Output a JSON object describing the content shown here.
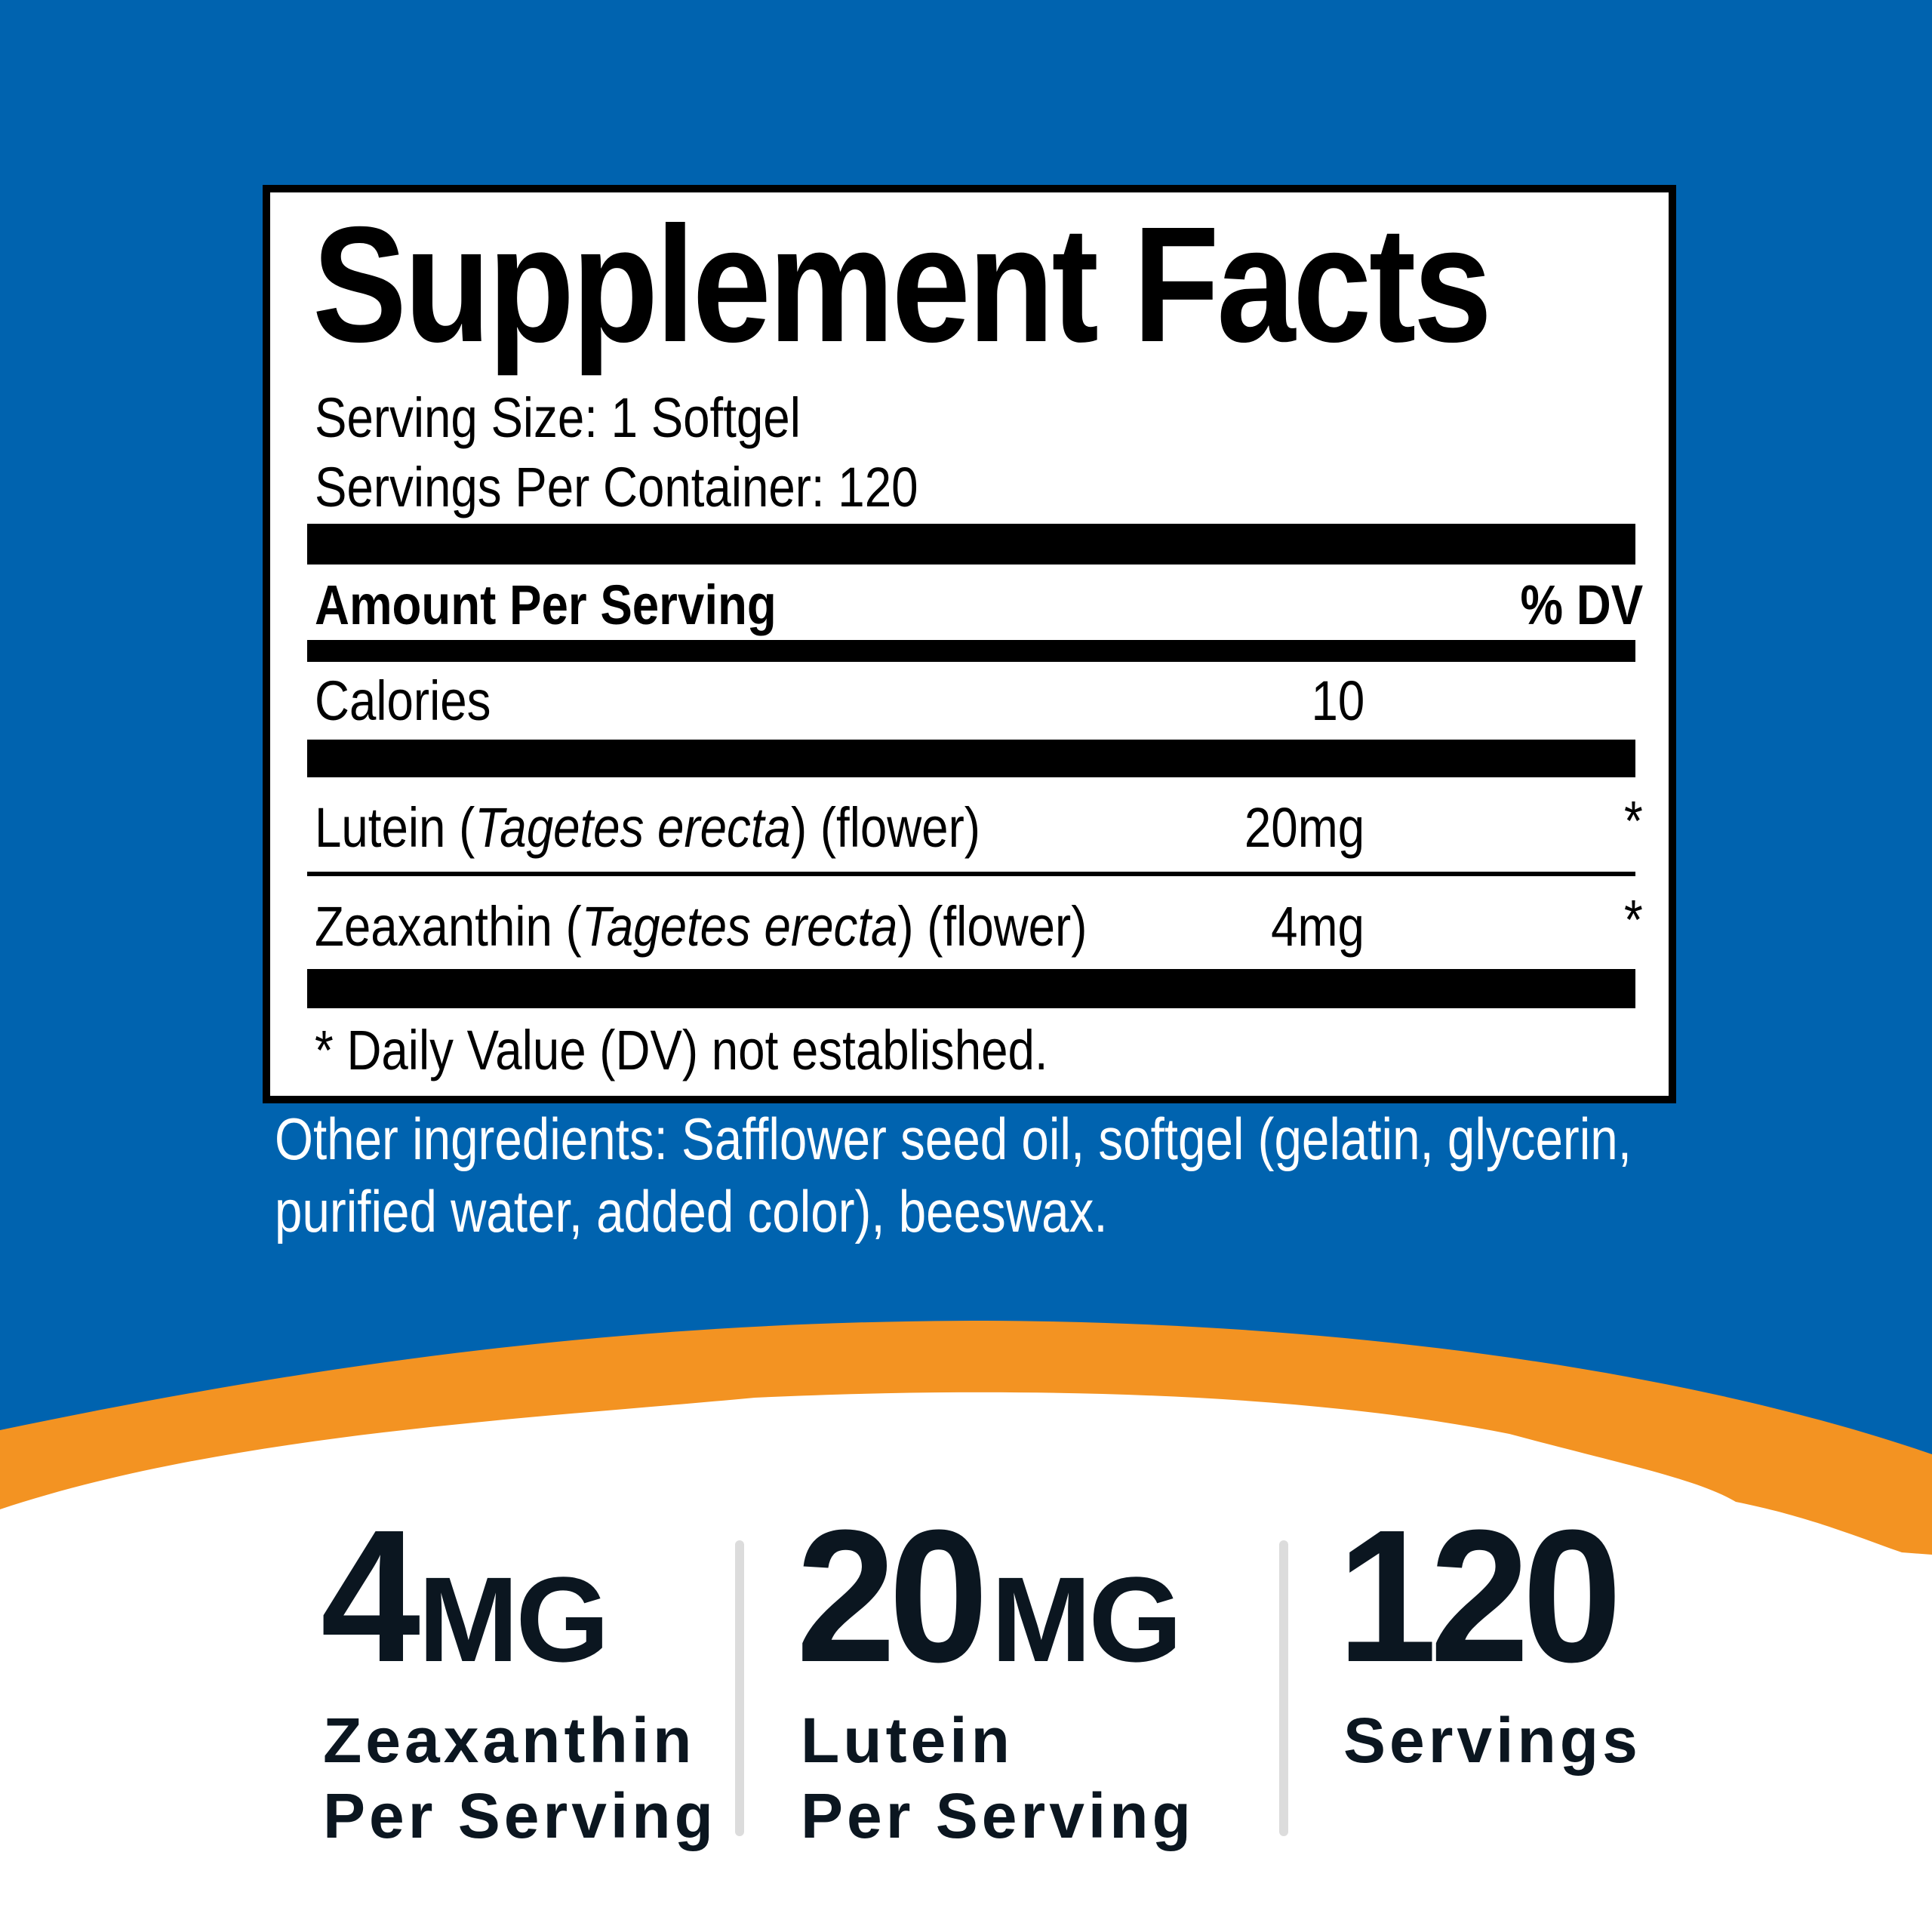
{
  "colors": {
    "background_blue": "#0063af",
    "accent_orange": "#f39322",
    "text_dark": "#0b1620"
  },
  "label": {
    "title": "Supplement Facts",
    "serving_size": "Serving Size: 1 Softgel",
    "servings_per_container": "Servings Per Container: 120",
    "header_amount": "Amount Per Serving",
    "header_dv": "% DV",
    "rows": [
      {
        "name": "Calories",
        "amount": "10",
        "dv": ""
      },
      {
        "name_pre": "Lutein (",
        "name_italic": "Tagetes erecta",
        "name_post": ") (flower)",
        "amount": "20mg",
        "dv": "*"
      },
      {
        "name_pre": "Zeaxanthin (",
        "name_italic": "Tagetes erecta",
        "name_post": ") (flower)",
        "amount": "4mg",
        "dv": "*"
      }
    ],
    "footnote": "* Daily Value (DV) not established."
  },
  "other_ingredients": {
    "line1": "Other ingredients: Safflower seed oil, softgel (gelatin, glycerin,",
    "line2": "purified water, added color), beeswax."
  },
  "stats": [
    {
      "value": "4",
      "unit": "MG",
      "line1": "Zeaxanthin",
      "line2": "Per Serving"
    },
    {
      "value": "20",
      "unit": "MG",
      "line1": "Lutein",
      "line2": "Per Serving"
    },
    {
      "value": "120",
      "unit": "",
      "line1": "Servings",
      "line2": ""
    }
  ]
}
